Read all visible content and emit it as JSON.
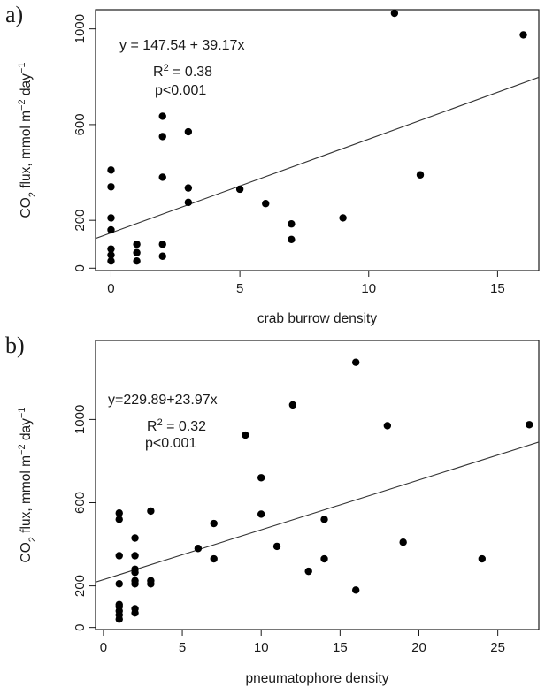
{
  "chart_data": [
    {
      "panel": "a)",
      "type": "scatter",
      "xlabel": "crab burrow density",
      "ylabel": {
        "text": "CO",
        "sub": "2",
        "rest": " flux,  mmol m",
        "sup1": "−2",
        "mid": " day",
        "sup2": "−1"
      },
      "xlim": [
        -0.6,
        16.6
      ],
      "ylim": [
        -10,
        1080
      ],
      "xticks": [
        0,
        5,
        10,
        15
      ],
      "yticks": [
        0,
        200,
        600,
        1000
      ],
      "equation": "y = 147.54 + 39.17x",
      "r2": {
        "base": "R",
        "sup": "2",
        "rest": " = 0.38"
      },
      "p": "p<0.001",
      "fit": {
        "intercept": 147.54,
        "slope": 39.17
      },
      "points": [
        [
          0,
          30
        ],
        [
          0,
          55
        ],
        [
          0,
          80
        ],
        [
          0,
          160
        ],
        [
          0,
          210
        ],
        [
          0,
          340
        ],
        [
          0,
          410
        ],
        [
          1,
          30
        ],
        [
          1,
          65
        ],
        [
          1,
          100
        ],
        [
          2,
          50
        ],
        [
          2,
          100
        ],
        [
          2,
          380
        ],
        [
          2,
          550
        ],
        [
          2,
          635
        ],
        [
          3,
          275
        ],
        [
          3,
          335
        ],
        [
          3,
          570
        ],
        [
          5,
          330
        ],
        [
          6,
          270
        ],
        [
          7,
          120
        ],
        [
          7,
          185
        ],
        [
          9,
          210
        ],
        [
          11,
          1065
        ],
        [
          12,
          390
        ],
        [
          16,
          975
        ]
      ]
    },
    {
      "panel": "b)",
      "type": "scatter",
      "xlabel": "pneumatophore density",
      "ylabel": {
        "text": "CO",
        "sub": "2",
        "rest": " flux,  mmol m",
        "sup1": "−2",
        "mid": " day",
        "sup2": "−1"
      },
      "xlim": [
        -0.5,
        27.6
      ],
      "ylim": [
        -10,
        1380
      ],
      "xticks": [
        0,
        5,
        10,
        15,
        20,
        25
      ],
      "yticks": [
        0,
        200,
        600,
        1000
      ],
      "equation": "y=229.89+23.97x",
      "r2": {
        "base": "R",
        "sup": "2",
        "rest": " = 0.32"
      },
      "p": "p<0.001",
      "fit": {
        "intercept": 229.89,
        "slope": 23.97
      },
      "points": [
        [
          1,
          40
        ],
        [
          1,
          60
        ],
        [
          1,
          80
        ],
        [
          1,
          100
        ],
        [
          1,
          110
        ],
        [
          1,
          210
        ],
        [
          1,
          345
        ],
        [
          1,
          520
        ],
        [
          1,
          550
        ],
        [
          2,
          70
        ],
        [
          2,
          90
        ],
        [
          2,
          210
        ],
        [
          2,
          225
        ],
        [
          2,
          265
        ],
        [
          2,
          280
        ],
        [
          2,
          345
        ],
        [
          2,
          430
        ],
        [
          3,
          210
        ],
        [
          3,
          225
        ],
        [
          3,
          560
        ],
        [
          6,
          380
        ],
        [
          7,
          330
        ],
        [
          7,
          500
        ],
        [
          9,
          925
        ],
        [
          10,
          545
        ],
        [
          10,
          720
        ],
        [
          11,
          390
        ],
        [
          12,
          1070
        ],
        [
          13,
          270
        ],
        [
          14,
          330
        ],
        [
          14,
          520
        ],
        [
          16,
          180
        ],
        [
          16,
          1275
        ],
        [
          18,
          970
        ],
        [
          19,
          410
        ],
        [
          24,
          330
        ],
        [
          27,
          975
        ]
      ]
    }
  ]
}
